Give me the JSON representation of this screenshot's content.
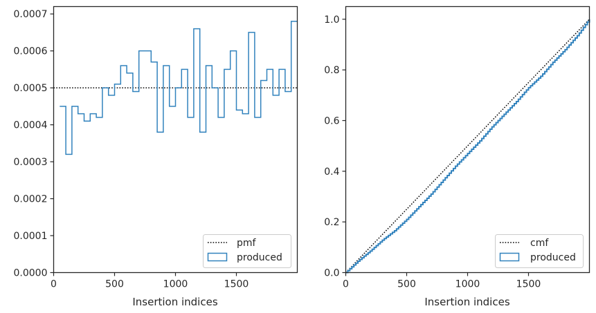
{
  "chart_data": [
    {
      "type": "line",
      "xlabel": "Insertion indices",
      "ylabel": "",
      "xlim": [
        0,
        2000
      ],
      "ylim": [
        0,
        0.00072
      ],
      "xticks": [
        "0",
        "500",
        "1000",
        "1500"
      ],
      "yticks": [
        "0.0000",
        "0.0001",
        "0.0002",
        "0.0003",
        "0.0004",
        "0.0005",
        "0.0006",
        "0.0007"
      ],
      "grid": false,
      "legend_position": "bottom-right",
      "series": [
        {
          "name": "pmf",
          "style": "dotted",
          "color": "#000000",
          "x": [
            0,
            2000
          ],
          "y": [
            0.0005,
            0.0005
          ]
        },
        {
          "name": "produced",
          "style": "step",
          "color": "#3182bd",
          "bin_edges": [
            50,
            100,
            150,
            200,
            250,
            300,
            350,
            400,
            450,
            500,
            550,
            600,
            650,
            700,
            750,
            800,
            850,
            900,
            950,
            1000,
            1050,
            1100,
            1150,
            1200,
            1250,
            1300,
            1350,
            1400,
            1450,
            1500,
            1550,
            1600,
            1650,
            1700,
            1750,
            1800,
            1850,
            1900,
            1950,
            2000
          ],
          "values": [
            0.00045,
            0.00032,
            0.00045,
            0.00043,
            0.00041,
            0.00043,
            0.00042,
            0.0005,
            0.00048,
            0.00051,
            0.00056,
            0.00054,
            0.00049,
            0.0006,
            0.0006,
            0.00057,
            0.00038,
            0.00056,
            0.00045,
            0.0005,
            0.00055,
            0.00042,
            0.00066,
            0.00038,
            0.00056,
            0.0005,
            0.00042,
            0.00055,
            0.0006,
            0.00044,
            0.00043,
            0.00065,
            0.00042,
            0.00052,
            0.00055,
            0.00048,
            0.00055,
            0.00049,
            0.00068
          ]
        }
      ]
    },
    {
      "type": "line",
      "xlabel": "Insertion indices",
      "ylabel": "",
      "xlim": [
        0,
        2000
      ],
      "ylim": [
        0,
        1.05
      ],
      "xticks": [
        "0",
        "500",
        "1000",
        "1500"
      ],
      "yticks": [
        "0.0",
        "0.2",
        "0.4",
        "0.6",
        "0.8",
        "1.0"
      ],
      "grid": false,
      "legend_position": "bottom-right",
      "series": [
        {
          "name": "cmf",
          "style": "dotted",
          "color": "#000000",
          "x": [
            0,
            2000
          ],
          "y": [
            0,
            1
          ]
        },
        {
          "name": "produced",
          "style": "step",
          "color": "#3182bd",
          "x": [
            0,
            100,
            200,
            300,
            400,
            500,
            600,
            700,
            800,
            900,
            1000,
            1100,
            1200,
            1300,
            1400,
            1500,
            1600,
            1700,
            1800,
            1900,
            2000
          ],
          "y": [
            0,
            0.045,
            0.085,
            0.128,
            0.165,
            0.21,
            0.26,
            0.31,
            0.365,
            0.42,
            0.47,
            0.52,
            0.575,
            0.625,
            0.675,
            0.73,
            0.775,
            0.83,
            0.88,
            0.935,
            1.0
          ]
        }
      ]
    }
  ]
}
